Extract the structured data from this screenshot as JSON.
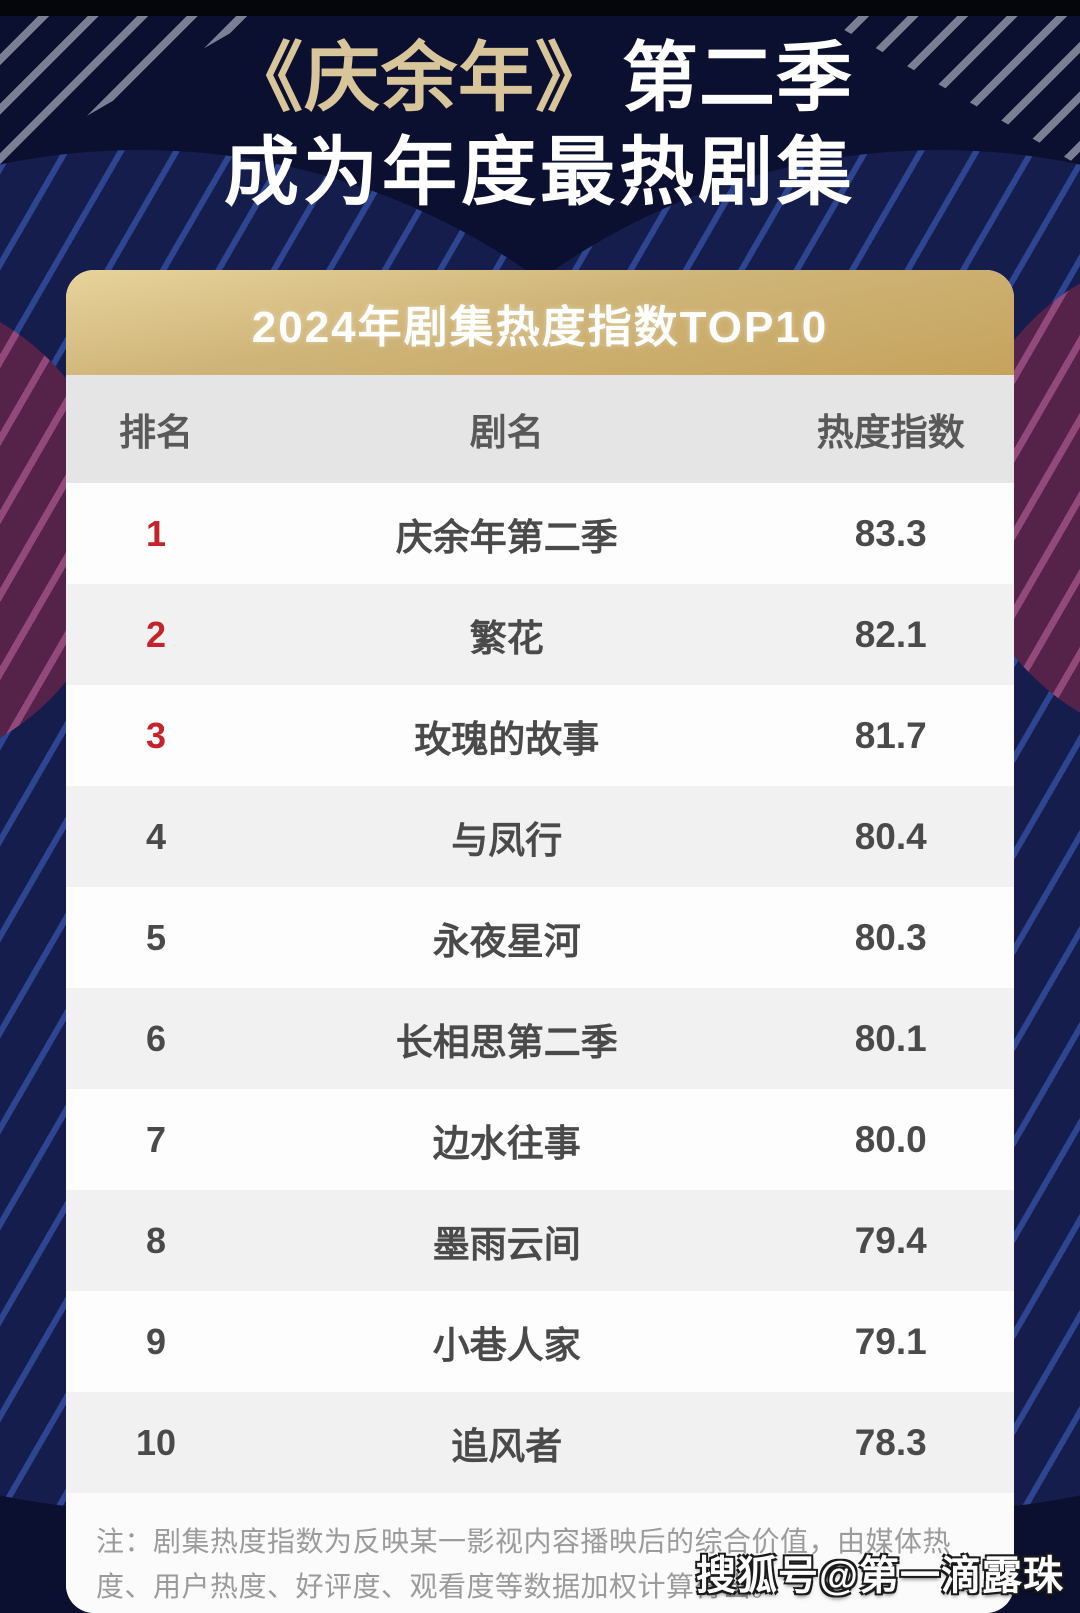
{
  "title": {
    "line1_gold": "《庆余年》",
    "line1_white": "第二季",
    "line2": "成为年度最热剧集"
  },
  "banner": {
    "title": "2024年剧集热度指数TOP10"
  },
  "table": {
    "headers": {
      "rank": "排名",
      "name": "剧名",
      "score": "热度指数"
    },
    "rows": [
      {
        "rank": "1",
        "name": "庆余年第二季",
        "score": "83.3"
      },
      {
        "rank": "2",
        "name": "繁花",
        "score": "82.1"
      },
      {
        "rank": "3",
        "name": "玫瑰的故事",
        "score": "81.7"
      },
      {
        "rank": "4",
        "name": "与凤行",
        "score": "80.4"
      },
      {
        "rank": "5",
        "name": "永夜星河",
        "score": "80.3"
      },
      {
        "rank": "6",
        "name": "长相思第二季",
        "score": "80.1"
      },
      {
        "rank": "7",
        "name": "边水往事",
        "score": "80.0"
      },
      {
        "rank": "8",
        "name": "墨雨云间",
        "score": "79.4"
      },
      {
        "rank": "9",
        "name": "小巷人家",
        "score": "79.1"
      },
      {
        "rank": "10",
        "name": "追风者",
        "score": "78.3"
      }
    ]
  },
  "note": "注：剧集热度指数为反映某一影视内容播映后的综合价值，由媒体热度、用户热度、好评度、观看度等数据加权计算得出。",
  "watermark": "搜狐号@第一滴露珠",
  "colors": {
    "background_navy": "#0b1030",
    "accent_gold": "#cfb478",
    "title_gold": "#d8c69a",
    "rank_red": "#c4232b",
    "maroon_circle": "#552249",
    "blue_circle": "#141d4c"
  },
  "chart_data": {
    "type": "table",
    "title": "2024年剧集热度指数TOP10",
    "columns": [
      "排名",
      "剧名",
      "热度指数"
    ],
    "categories": [
      "庆余年第二季",
      "繁花",
      "玫瑰的故事",
      "与凤行",
      "永夜星河",
      "长相思第二季",
      "边水往事",
      "墨雨云间",
      "小巷人家",
      "追风者"
    ],
    "values": [
      83.3,
      82.1,
      81.7,
      80.4,
      80.3,
      80.1,
      80.0,
      79.4,
      79.1,
      78.3
    ],
    "ranks": [
      1,
      2,
      3,
      4,
      5,
      6,
      7,
      8,
      9,
      10
    ],
    "note": "注：剧集热度指数为反映某一影视内容播映后的综合价值，由媒体热度、用户热度、好评度、观看度等数据加权计算得出。"
  }
}
